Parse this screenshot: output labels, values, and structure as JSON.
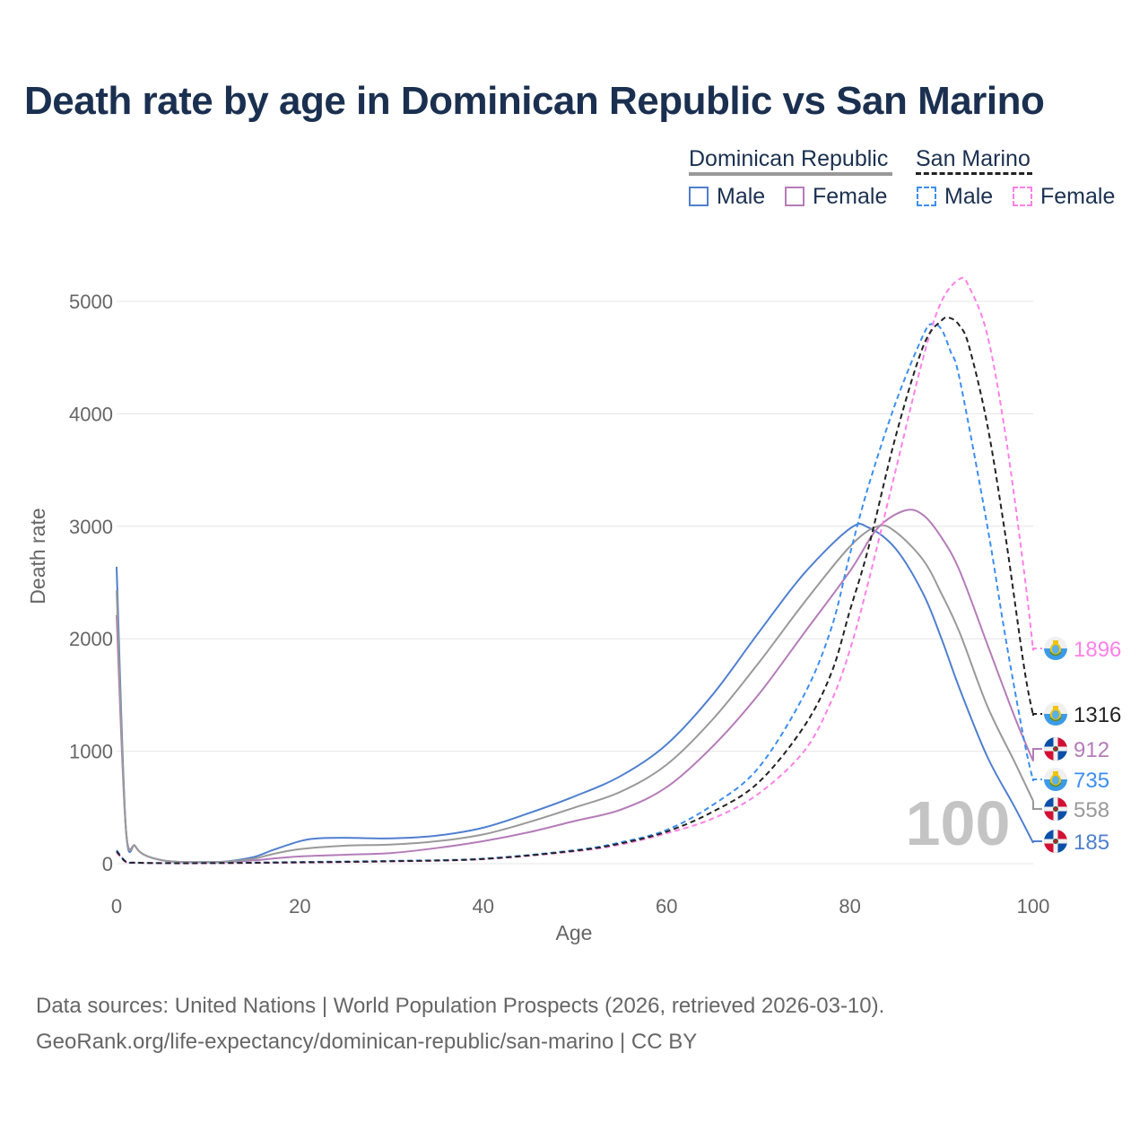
{
  "title": "Death rate by age in Dominican Republic vs San Marino",
  "legend": {
    "group1": "Dominican Republic",
    "group2": "San Marino",
    "g1_male": "Male",
    "g1_female": "Female",
    "g2_male": "Male",
    "g2_female": "Female"
  },
  "footer": {
    "line1": "Data sources: United Nations | World Population Prospects (2026, retrieved 2026-03-10).",
    "line2": "GeoRank.org/life-expectancy/dominican-republic/san-marino | CC BY"
  },
  "watermark": "100",
  "chart_data": {
    "type": "line",
    "title": "Death rate by age in Dominican Republic vs San Marino",
    "xlabel": "Age",
    "ylabel": "Death rate",
    "xlim": [
      0,
      100
    ],
    "ylim": [
      0,
      5000
    ],
    "xticks": [
      0,
      20,
      40,
      60,
      80,
      100
    ],
    "yticks": [
      0,
      1000,
      2000,
      3000,
      4000,
      5000
    ],
    "grid": true,
    "series": [
      {
        "name": "Dominican Republic Male",
        "color": "#4f7fcf",
        "dash": false,
        "end_label": "185",
        "flag": "do",
        "x": [
          0,
          1,
          2,
          3,
          5,
          7,
          10,
          12,
          15,
          17,
          20,
          22,
          25,
          30,
          35,
          40,
          45,
          50,
          55,
          60,
          65,
          70,
          75,
          80,
          82,
          85,
          88,
          90,
          92,
          95,
          98,
          100
        ],
        "y": [
          2640,
          330,
          160,
          80,
          30,
          15,
          15,
          20,
          60,
          120,
          200,
          225,
          230,
          225,
          250,
          320,
          450,
          600,
          780,
          1060,
          1500,
          2050,
          2580,
          2980,
          2990,
          2800,
          2400,
          2000,
          1550,
          950,
          500,
          185
        ]
      },
      {
        "name": "Dominican Republic Female",
        "color": "#b47cb8",
        "dash": false,
        "end_label": "912",
        "flag": "do",
        "x": [
          0,
          1,
          2,
          3,
          5,
          7,
          10,
          12,
          15,
          17,
          20,
          25,
          30,
          35,
          40,
          45,
          50,
          55,
          60,
          65,
          70,
          75,
          80,
          83,
          86,
          88,
          90,
          92,
          95,
          98,
          100
        ],
        "y": [
          2210,
          320,
          160,
          80,
          30,
          15,
          12,
          15,
          30,
          45,
          65,
          80,
          95,
          140,
          200,
          280,
          380,
          480,
          680,
          1040,
          1500,
          2050,
          2600,
          2980,
          3140,
          3100,
          2900,
          2600,
          1950,
          1300,
          912
        ]
      },
      {
        "name": "Dominican Republic Total",
        "color": "#999999",
        "dash": false,
        "end_label": "558",
        "flag": "do",
        "x": [
          0,
          1,
          2,
          3,
          5,
          7,
          10,
          12,
          15,
          17,
          20,
          25,
          30,
          35,
          40,
          45,
          50,
          55,
          60,
          65,
          70,
          75,
          80,
          83,
          85,
          88,
          90,
          92,
          95,
          98,
          100
        ],
        "y": [
          2430,
          330,
          160,
          80,
          30,
          15,
          13,
          18,
          45,
          85,
          130,
          160,
          170,
          200,
          260,
          370,
          500,
          640,
          880,
          1280,
          1780,
          2320,
          2820,
          3000,
          2950,
          2700,
          2400,
          2050,
          1400,
          900,
          558
        ]
      },
      {
        "name": "San Marino Male",
        "color": "#3d8ef0",
        "dash": true,
        "end_label": "735",
        "flag": "sm",
        "x": [
          0,
          1,
          2,
          5,
          10,
          20,
          30,
          40,
          50,
          55,
          60,
          65,
          70,
          75,
          78,
          80,
          82,
          85,
          88,
          89,
          90,
          91,
          92,
          95,
          97,
          99,
          100
        ],
        "y": [
          120,
          20,
          10,
          5,
          5,
          15,
          25,
          45,
          120,
          190,
          300,
          520,
          850,
          1500,
          2100,
          2750,
          3350,
          4100,
          4700,
          4800,
          4750,
          4550,
          4300,
          3000,
          2000,
          1100,
          735
        ]
      },
      {
        "name": "San Marino Female",
        "color": "#ff80e8",
        "dash": true,
        "end_label": "1896",
        "flag": "sm",
        "x": [
          0,
          1,
          2,
          5,
          10,
          20,
          30,
          40,
          50,
          55,
          60,
          65,
          70,
          75,
          78,
          80,
          82,
          85,
          88,
          90,
          92,
          93,
          95,
          97,
          99,
          100
        ],
        "y": [
          100,
          15,
          8,
          4,
          4,
          10,
          20,
          40,
          110,
          170,
          270,
          400,
          620,
          1000,
          1450,
          1900,
          2500,
          3500,
          4500,
          5000,
          5200,
          5130,
          4700,
          3800,
          2600,
          1896
        ]
      },
      {
        "name": "San Marino Total",
        "color": "#222222",
        "dash": true,
        "end_label": "1316",
        "flag": "sm",
        "x": [
          0,
          1,
          2,
          5,
          10,
          20,
          30,
          40,
          50,
          55,
          60,
          65,
          70,
          75,
          78,
          80,
          82,
          85,
          88,
          90,
          91,
          92,
          93,
          95,
          97,
          99,
          100
        ],
        "y": [
          110,
          18,
          9,
          5,
          5,
          12,
          22,
          42,
          115,
          180,
          285,
          460,
          720,
          1220,
          1700,
          2250,
          2800,
          3800,
          4600,
          4830,
          4850,
          4780,
          4600,
          3900,
          2900,
          1750,
          1316
        ]
      }
    ]
  }
}
